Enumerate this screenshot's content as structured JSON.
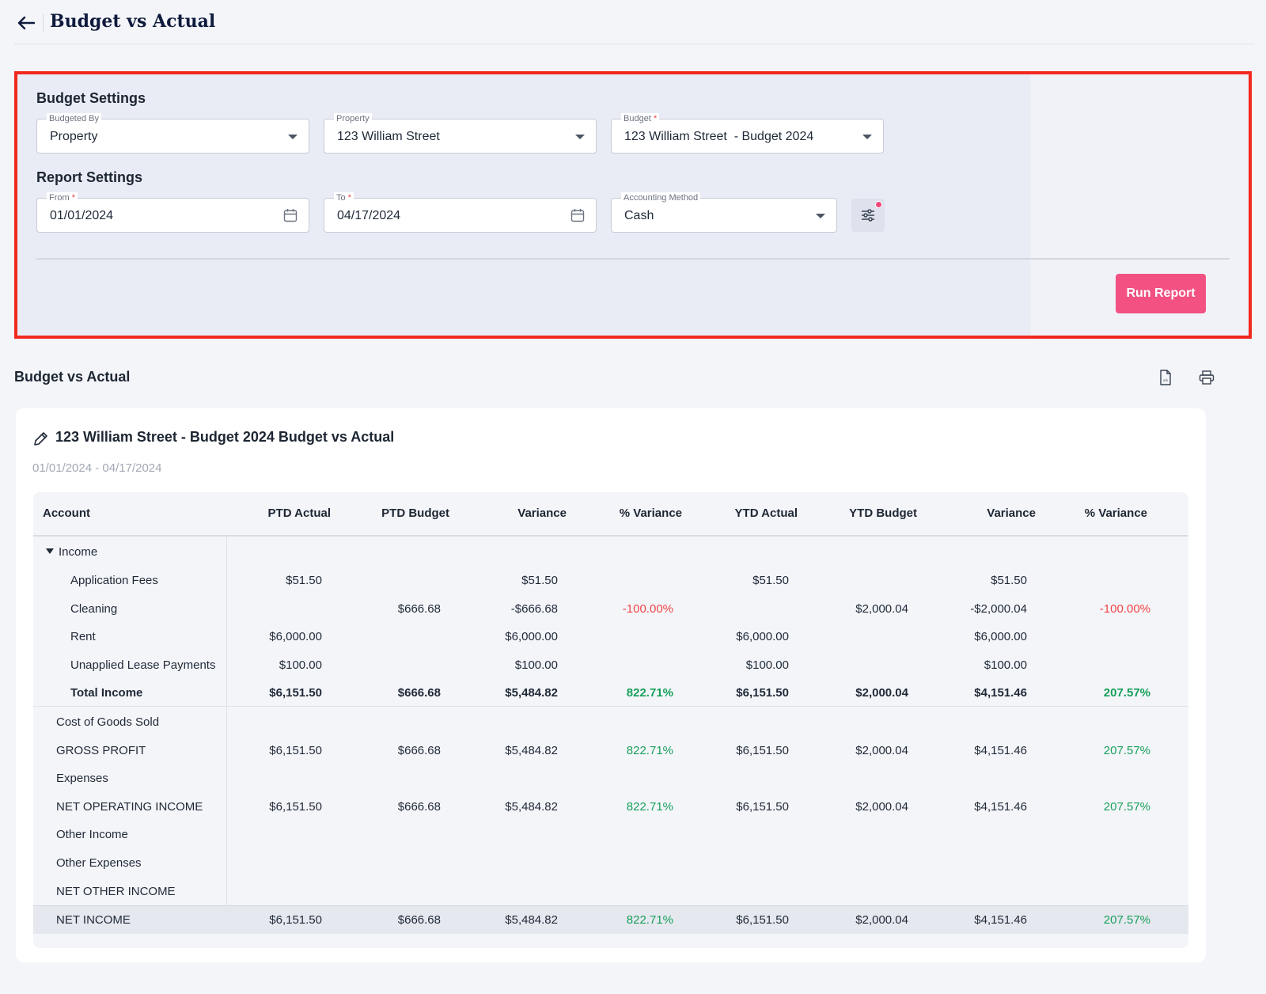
{
  "header": {
    "title": "Budget vs Actual"
  },
  "budget_settings": {
    "title": "Budget Settings",
    "budgeted_by": {
      "label": "Budgeted By",
      "value": "Property"
    },
    "property": {
      "label": "Property",
      "value": "123 William Street"
    },
    "budget": {
      "label": "Budget",
      "required_mark": "*",
      "value": "123 William Street  - Budget 2024"
    }
  },
  "report_settings": {
    "title": "Report Settings",
    "from": {
      "label": "From",
      "required_mark": "*",
      "value": "01/01/2024"
    },
    "to": {
      "label": "To",
      "required_mark": "*",
      "value": "04/17/2024"
    },
    "accounting_method": {
      "label": "Accounting Method",
      "value": "Cash"
    },
    "run_label": "Run Report"
  },
  "report": {
    "heading": "Budget vs Actual",
    "title": "123 William Street - Budget 2024 Budget vs Actual",
    "date_range": "01/01/2024 - 04/17/2024",
    "columns": [
      "Account",
      "PTD Actual",
      "PTD Budget",
      "Variance",
      "% Variance",
      "YTD Actual",
      "YTD Budget",
      "Variance",
      "% Variance"
    ],
    "rows": [
      {
        "name": "Income",
        "cells": [
          "",
          "",
          "",
          "",
          "",
          "",
          "",
          ""
        ]
      },
      {
        "name": "Application Fees",
        "cells": [
          "$51.50",
          "",
          "$51.50",
          "",
          "$51.50",
          "",
          "$51.50",
          ""
        ]
      },
      {
        "name": "Cleaning",
        "cells": [
          "",
          "$666.68",
          "-$666.68",
          "-100.00%",
          "",
          "$2,000.04",
          "-$2,000.04",
          "-100.00%"
        ]
      },
      {
        "name": "Rent",
        "cells": [
          "$6,000.00",
          "",
          "$6,000.00",
          "",
          "$6,000.00",
          "",
          "$6,000.00",
          ""
        ]
      },
      {
        "name": "Unapplied Lease Payments",
        "cells": [
          "$100.00",
          "",
          "$100.00",
          "",
          "$100.00",
          "",
          "$100.00",
          ""
        ]
      },
      {
        "name": "Total Income",
        "cells": [
          "$6,151.50",
          "$666.68",
          "$5,484.82",
          "822.71%",
          "$6,151.50",
          "$2,000.04",
          "$4,151.46",
          "207.57%"
        ]
      },
      {
        "name": "Cost of Goods Sold",
        "cells": [
          "",
          "",
          "",
          "",
          "",
          "",
          "",
          ""
        ]
      },
      {
        "name": "GROSS PROFIT",
        "cells": [
          "$6,151.50",
          "$666.68",
          "$5,484.82",
          "822.71%",
          "$6,151.50",
          "$2,000.04",
          "$4,151.46",
          "207.57%"
        ]
      },
      {
        "name": "Expenses",
        "cells": [
          "",
          "",
          "",
          "",
          "",
          "",
          "",
          ""
        ]
      },
      {
        "name": "NET OPERATING INCOME",
        "cells": [
          "$6,151.50",
          "$666.68",
          "$5,484.82",
          "822.71%",
          "$6,151.50",
          "$2,000.04",
          "$4,151.46",
          "207.57%"
        ]
      },
      {
        "name": "Other Income",
        "cells": [
          "",
          "",
          "",
          "",
          "",
          "",
          "",
          ""
        ]
      },
      {
        "name": "Other Expenses",
        "cells": [
          "",
          "",
          "",
          "",
          "",
          "",
          "",
          ""
        ]
      },
      {
        "name": "NET OTHER INCOME",
        "cells": [
          "",
          "",
          "",
          "",
          "",
          "",
          "",
          ""
        ]
      },
      {
        "name": "NET INCOME",
        "cells": [
          "$6,151.50",
          "$666.68",
          "$5,484.82",
          "822.71%",
          "$6,151.50",
          "$2,000.04",
          "$4,151.46",
          "207.57%"
        ]
      }
    ]
  },
  "colors": {
    "accent": "#f25182",
    "highlight_border": "#f2281f",
    "positive": "#16a05a",
    "negative": "#ef4444"
  },
  "icons": [
    "arrow-left-icon",
    "calendar-icon",
    "chevron-down-icon",
    "sliders-icon",
    "xls-file-icon",
    "print-icon",
    "pencil-icon"
  ]
}
